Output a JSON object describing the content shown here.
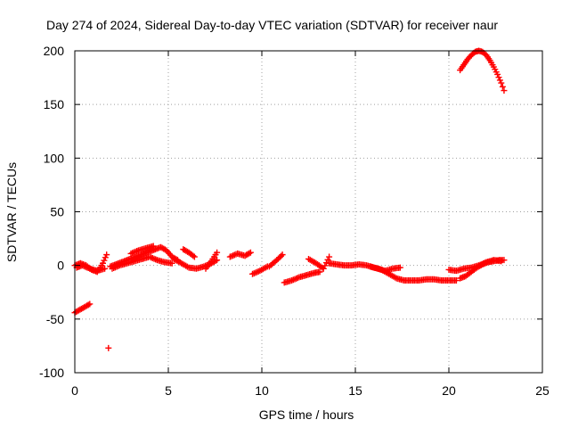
{
  "chart_data": {
    "type": "scatter",
    "title": "Day 274 of 2024, Sidereal Day-to-day VTEC variation (SDTVAR) for receiver naur",
    "xlabel": "GPS time / hours",
    "ylabel": "SDTVAR / TECUs",
    "xlim": [
      0,
      25
    ],
    "ylim": [
      -100,
      200
    ],
    "xticks": [
      "0",
      "5",
      "10",
      "15",
      "20",
      "25"
    ],
    "yticks": [
      "-100",
      "-50",
      "0",
      "50",
      "100",
      "150",
      "200"
    ],
    "grid": true,
    "marker": "plus",
    "color": "#ff0000",
    "series": [
      {
        "name": "SDTVAR",
        "segments": [
          {
            "x": [
              0.0,
              0.5,
              0.8
            ],
            "y": [
              -44,
              -39,
              -36
            ]
          },
          {
            "x": [
              1.8
            ],
            "y": [
              -77
            ]
          },
          {
            "x": [
              0.0,
              0.3,
              0.6,
              0.9,
              1.2,
              1.5,
              1.7
            ],
            "y": [
              0,
              2,
              0,
              -4,
              -6,
              2,
              10
            ]
          },
          {
            "x": [
              0.1,
              0.4,
              0.8,
              1.2,
              1.6
            ],
            "y": [
              -2,
              0,
              -3,
              -5,
              -3
            ]
          },
          {
            "x": [
              1.9,
              2.2,
              2.5,
              2.8,
              3.1,
              3.4,
              3.7,
              4.0,
              4.3,
              4.6,
              4.9,
              5.2,
              5.5
            ],
            "y": [
              -1,
              1,
              3,
              5,
              7,
              9,
              11,
              13,
              15,
              17,
              14,
              8,
              5
            ]
          },
          {
            "x": [
              2.0,
              2.4,
              2.8,
              3.2,
              3.6,
              4.0,
              4.4,
              4.8,
              5.2
            ],
            "y": [
              -3,
              0,
              2,
              4,
              6,
              8,
              5,
              3,
              2
            ]
          },
          {
            "x": [
              3.0,
              3.4,
              3.8,
              4.2
            ],
            "y": [
              11,
              14,
              16,
              18
            ]
          },
          {
            "x": [
              5.3,
              5.7,
              6.1,
              6.5,
              6.9,
              7.3,
              7.6
            ],
            "y": [
              6,
              2,
              -2,
              -3,
              -1,
              2,
              5
            ]
          },
          {
            "x": [
              5.8,
              6.1,
              6.4
            ],
            "y": [
              15,
              12,
              8
            ]
          },
          {
            "x": [
              7.0,
              7.3,
              7.6
            ],
            "y": [
              -3,
              4,
              12
            ]
          },
          {
            "x": [
              8.3,
              8.7,
              9.1,
              9.4
            ],
            "y": [
              8,
              11,
              9,
              12
            ]
          },
          {
            "x": [
              9.5,
              9.9,
              10.3
            ],
            "y": [
              -8,
              -5,
              -1
            ]
          },
          {
            "x": [
              10.4,
              10.8,
              11.1
            ],
            "y": [
              -1,
              5,
              10
            ]
          },
          {
            "x": [
              11.2,
              11.6,
              12.0,
              12.4,
              12.8,
              13.1
            ],
            "y": [
              -16,
              -14,
              -11,
              -9,
              -7,
              -6
            ]
          },
          {
            "x": [
              12.5,
              12.9,
              13.3,
              13.6
            ],
            "y": [
              6,
              2,
              -3,
              8
            ]
          },
          {
            "x": [
              13.6,
              14.0,
              14.4,
              14.8,
              15.2,
              15.6,
              16.0,
              16.4,
              16.8,
              17.2,
              17.6,
              18.0,
              18.4,
              18.8,
              19.2,
              19.6,
              20.0,
              20.4
            ],
            "y": [
              2,
              1,
              0,
              0,
              1,
              0,
              -2,
              -4,
              -8,
              -12,
              -14,
              -14,
              -14,
              -13,
              -13,
              -14,
              -14,
              -14
            ]
          },
          {
            "x": [
              15.8,
              16.2,
              16.6,
              17.0,
              17.4
            ],
            "y": [
              -1,
              -3,
              -5,
              -3,
              -2
            ]
          },
          {
            "x": [
              20.0,
              20.4,
              20.8,
              21.2,
              21.6,
              22.0,
              22.4,
              22.8
            ],
            "y": [
              -4,
              -5,
              -3,
              -2,
              0,
              3,
              5,
              4
            ]
          },
          {
            "x": [
              20.6,
              20.9,
              21.2,
              21.5,
              21.8,
              22.1,
              22.4,
              22.7,
              22.95
            ],
            "y": [
              -12,
              -10,
              -6,
              -2,
              1,
              3,
              4,
              5,
              5
            ]
          },
          {
            "x": [
              20.6,
              20.8,
              21.0,
              21.2,
              21.4,
              21.6,
              21.8,
              22.0,
              22.2,
              22.4,
              22.6,
              22.8,
              22.95
            ],
            "y": [
              182,
              187,
              192,
              196,
              199,
              200,
              199,
              196,
              191,
              185,
              178,
              170,
              163
            ]
          }
        ]
      }
    ]
  }
}
